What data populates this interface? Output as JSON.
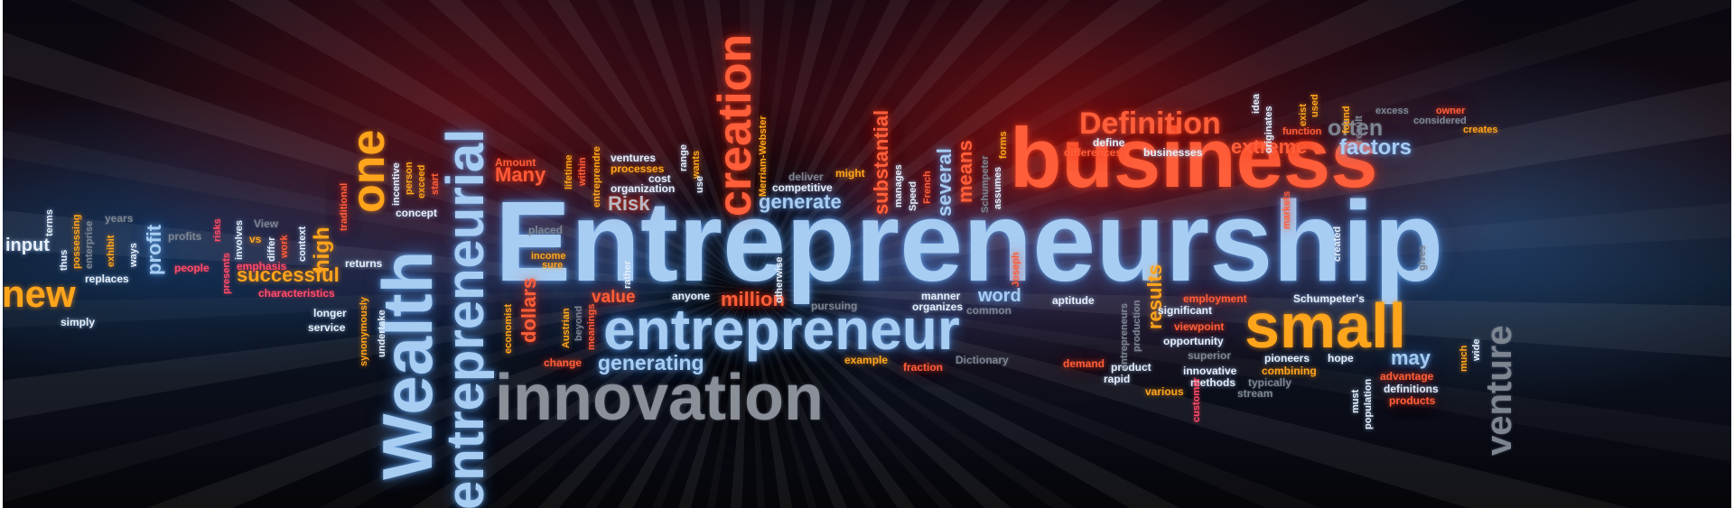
{
  "words": {
    "entrepreneurship": "Entrepreneurship",
    "business": "business",
    "entrepreneur": "entrepreneur",
    "innovation": "innovation",
    "small": "small",
    "wealth": "Wealth",
    "entrepreneurial": "entrepreneurial",
    "creation": "creation",
    "definition": "Definition",
    "new": "new",
    "one": "one",
    "venture": "venture",
    "extreme": "extreme",
    "factors": "factors",
    "often": "often",
    "generate": "generate",
    "generating": "generating",
    "successful": "successful",
    "high": "high",
    "input": "input",
    "profit": "profit",
    "many": "Many",
    "value": "value",
    "million": "million",
    "may": "may",
    "word": "word",
    "results": "results",
    "dollars": "dollars",
    "several": "several",
    "means": "means",
    "substantial": "substantial",
    "risk": "Risk",
    "differences": "differences",
    "define": "define",
    "businesses": "businesses",
    "schumpeters": "Schumpeter's",
    "employment": "employment",
    "viewpoint": "viewpoint",
    "significant": "significant",
    "opportunity": "opportunity",
    "superior": "superior",
    "pioneers": "pioneers",
    "hope": "hope",
    "innovative": "innovative",
    "combining": "combining",
    "methods": "methods",
    "typically": "typically",
    "stream": "stream",
    "advantage": "advantage",
    "definitions": "definitions",
    "products": "products",
    "product": "product",
    "rapid": "rapid",
    "various": "various",
    "demand": "demand",
    "dictionary": "Dictionary",
    "fraction": "fraction",
    "example": "example",
    "manner": "manner",
    "organizes": "organizes",
    "common": "common",
    "aptitude": "aptitude",
    "pursuing": "pursuing",
    "anyone": "anyone",
    "change": "change",
    "amount": "Amount",
    "ventures": "ventures",
    "processes": "processes",
    "cost": "cost",
    "organization": "organization",
    "use": "use",
    "deliver": "deliver",
    "might": "might",
    "competitive": "competitive",
    "excess": "excess",
    "owner": "owner",
    "considered": "considered",
    "creates": "creates",
    "function": "function",
    "found": "found",
    "placed": "placed",
    "income": "income",
    "sure": "sure",
    "returns": "returns",
    "concept": "concept",
    "longer": "longer",
    "service": "service",
    "characteristics": "characteristics",
    "emphasis": "emphasis",
    "people": "people",
    "replaces": "replaces",
    "simply": "simply",
    "terms": "terms",
    "years": "years",
    "profits": "profits",
    "view": "View",
    "vs": "vs",
    "incentive": "incentive",
    "person": "person",
    "exceed": "exceed",
    "start": "start",
    "traditional": "traditional",
    "lifetime": "lifetime",
    "within": "within",
    "entreprendre": "entreprendre",
    "range": "range",
    "wants": "wants",
    "merriam_webster": "Merriam-Webster",
    "manages": "manages",
    "speed": "Speed",
    "french": "French",
    "schumpeter": "Schumpeter",
    "assumes": "assumes",
    "forms": "forms",
    "markets": "markets",
    "idea": "idea",
    "originates": "originates",
    "exist": "exist",
    "used": "used",
    "result": "result",
    "gives": "gives",
    "customer": "customer",
    "population": "population",
    "must": "must",
    "much": "much",
    "wide": "wide",
    "created": "created",
    "joseph": "Joseph",
    "otherwise": "otherwise",
    "rather": "rather",
    "economist": "economist",
    "austrian": "Austrian",
    "beyond": "beyond",
    "meanings": "meanings",
    "production": "production",
    "entrepreneurs": "entrepreneurs",
    "undertake": "undertake",
    "synonymously": "synonymously",
    "context": "context",
    "work": "work",
    "differ": "differ",
    "involves": "involves",
    "presents": "presents",
    "risks": "risks",
    "ways": "ways",
    "exhibit": "exhibit",
    "enterprise": "enterprise",
    "possessing": "possessing",
    "thus": "thus"
  },
  "colors": {
    "blue": "#a8cdf2",
    "red": "#ff5e3a",
    "orange": "#ffa51c",
    "pink": "#ff4d6a",
    "grey": "#7d8591"
  }
}
